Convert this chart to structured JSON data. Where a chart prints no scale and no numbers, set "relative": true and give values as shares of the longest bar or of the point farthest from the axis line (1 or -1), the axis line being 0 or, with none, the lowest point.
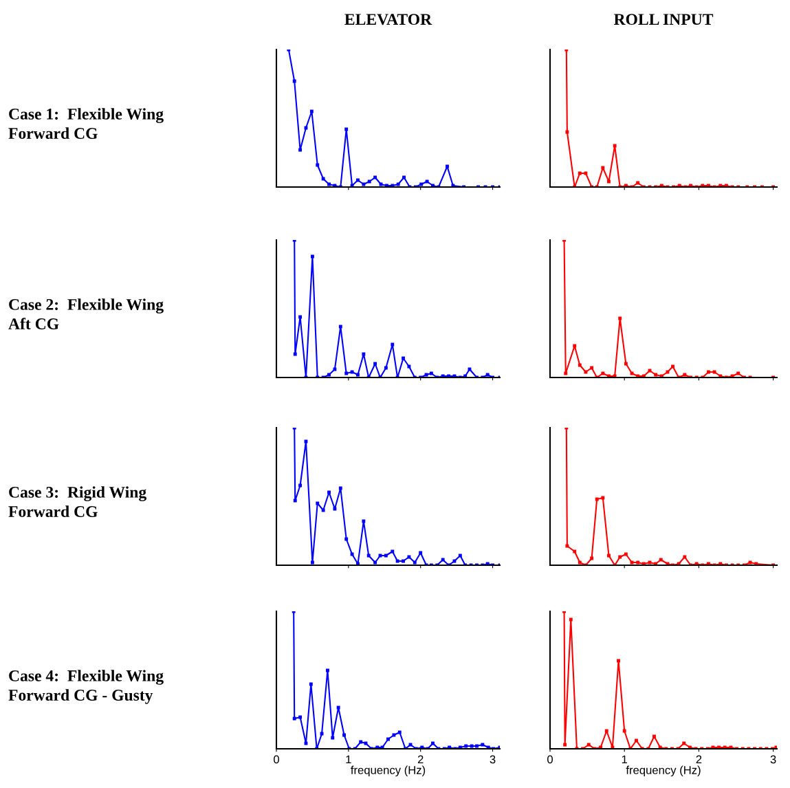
{
  "chart_data": [
    {
      "type": "line",
      "title": "ELEVATOR",
      "ylabel": "Case 1:  Flexible Wing\nForward CG",
      "relative": true,
      "marker": "square",
      "tick_labels": false,
      "xlim": [
        0,
        3.1
      ],
      "xticks": [
        1,
        2,
        3
      ],
      "series": [
        {
          "color": "#0000ff",
          "x": [
            0.17,
            0.25,
            0.33,
            0.41,
            0.49,
            0.57,
            0.65,
            0.73,
            0.81,
            0.89,
            0.97,
            1.05,
            1.13,
            1.21,
            1.29,
            1.37,
            1.45,
            1.53,
            1.61,
            1.69,
            1.77,
            1.85,
            1.93,
            2.01,
            2.09,
            2.17,
            2.25,
            2.37,
            2.45,
            2.6,
            2.8,
            2.9,
            3.0,
            3.1
          ],
          "values": [
            1.0,
            0.77,
            0.27,
            0.43,
            0.55,
            0.16,
            0.06,
            0.02,
            0.01,
            0,
            0.42,
            0.01,
            0.05,
            0.02,
            0.04,
            0.07,
            0.02,
            0.01,
            0.01,
            0.02,
            0.07,
            0,
            0,
            0.02,
            0.04,
            0.01,
            0,
            0.15,
            0.01,
            0,
            0,
            0,
            0,
            0
          ]
        }
      ]
    },
    {
      "type": "line",
      "title": "ROLL INPUT",
      "relative": true,
      "marker": "square",
      "tick_labels": false,
      "xlim": [
        0,
        3.05
      ],
      "xticks": [
        1,
        2,
        3
      ],
      "series": [
        {
          "color": "#ff0000",
          "x": [
            0.22,
            0.23,
            0.33,
            0.4,
            0.48,
            0.56,
            0.63,
            0.71,
            0.79,
            0.87,
            0.94,
            1.02,
            1.1,
            1.18,
            1.26,
            1.34,
            1.42,
            1.5,
            1.58,
            1.66,
            1.74,
            1.82,
            1.89,
            1.97,
            2.05,
            2.13,
            2.21,
            2.29,
            2.37,
            2.45,
            2.53,
            2.65,
            2.75,
            2.85,
            3.0
          ],
          "values": [
            1.0,
            0.4,
            0,
            0.1,
            0.1,
            0,
            0,
            0.14,
            0.04,
            0.3,
            0,
            0.01,
            0,
            0.03,
            0,
            0,
            0,
            0.01,
            0,
            0,
            0.01,
            0,
            0.01,
            0,
            0.01,
            0.01,
            0,
            0.01,
            0.01,
            0,
            0,
            0,
            0,
            0,
            0
          ]
        }
      ]
    },
    {
      "type": "line",
      "ylabel": "Case 2:  Flexible Wing\nAft CG",
      "relative": true,
      "marker": "square",
      "tick_labels": false,
      "xlim": [
        0,
        3.1
      ],
      "xticks": [
        1,
        2,
        3
      ],
      "series": [
        {
          "color": "#0000ff",
          "x": [
            0.25,
            0.26,
            0.33,
            0.41,
            0.5,
            0.57,
            0.65,
            0.73,
            0.81,
            0.89,
            0.97,
            1.05,
            1.13,
            1.21,
            1.28,
            1.37,
            1.44,
            1.52,
            1.61,
            1.68,
            1.76,
            1.84,
            1.92,
            2.0,
            2.08,
            2.15,
            2.23,
            2.31,
            2.39,
            2.47,
            2.55,
            2.62,
            2.68,
            2.78,
            2.86,
            2.93,
            3.0,
            3.1
          ],
          "values": [
            1.0,
            0.17,
            0.44,
            0,
            0.88,
            0,
            0,
            0.02,
            0.06,
            0.37,
            0.03,
            0.04,
            0.02,
            0.17,
            0,
            0.1,
            0,
            0.07,
            0.24,
            0,
            0.14,
            0.08,
            0,
            0,
            0.02,
            0.03,
            0,
            0.01,
            0.01,
            0.01,
            0,
            0.01,
            0.06,
            0,
            0,
            0.02,
            0,
            0
          ]
        }
      ]
    },
    {
      "type": "line",
      "relative": true,
      "marker": "square",
      "tick_labels": false,
      "xlim": [
        0,
        3.05
      ],
      "xticks": [
        1,
        2,
        3
      ],
      "series": [
        {
          "color": "#ff0000",
          "x": [
            0.19,
            0.21,
            0.33,
            0.4,
            0.48,
            0.56,
            0.63,
            0.71,
            0.79,
            0.87,
            0.94,
            1.02,
            1.1,
            1.18,
            1.26,
            1.34,
            1.42,
            1.5,
            1.58,
            1.65,
            1.73,
            1.81,
            1.89,
            1.97,
            2.05,
            2.13,
            2.21,
            2.29,
            2.37,
            2.45,
            2.53,
            2.61,
            2.69,
            3.0
          ],
          "values": [
            1.0,
            0.03,
            0.23,
            0.09,
            0.04,
            0.07,
            0,
            0.03,
            0.01,
            0.01,
            0.43,
            0.1,
            0.03,
            0.01,
            0.01,
            0.05,
            0.02,
            0.01,
            0.04,
            0.08,
            0,
            0.02,
            0,
            0,
            0,
            0.04,
            0.04,
            0.01,
            0,
            0.01,
            0.03,
            0,
            0,
            0
          ]
        }
      ]
    },
    {
      "type": "line",
      "ylabel": "Case 3:  Rigid Wing\nForward CG",
      "relative": true,
      "marker": "square",
      "tick_labels": false,
      "xlim": [
        0,
        3.1
      ],
      "xticks": [
        1,
        2,
        3
      ],
      "series": [
        {
          "color": "#0000ff",
          "x": [
            0.25,
            0.26,
            0.33,
            0.41,
            0.5,
            0.57,
            0.65,
            0.73,
            0.81,
            0.89,
            0.97,
            1.05,
            1.13,
            1.21,
            1.28,
            1.37,
            1.44,
            1.52,
            1.61,
            1.68,
            1.76,
            1.84,
            1.92,
            2.0,
            2.08,
            2.15,
            2.23,
            2.31,
            2.39,
            2.47,
            2.55,
            2.62,
            2.7,
            2.78,
            2.86,
            2.93,
            3.0,
            3.1
          ],
          "values": [
            1.0,
            0.47,
            0.58,
            0.9,
            0.02,
            0.45,
            0.4,
            0.53,
            0.41,
            0.56,
            0.19,
            0.08,
            0.01,
            0.32,
            0.07,
            0.02,
            0.07,
            0.07,
            0.1,
            0.03,
            0.03,
            0.06,
            0.02,
            0.09,
            0,
            0,
            0,
            0.04,
            0,
            0.03,
            0.07,
            0,
            0,
            0,
            0,
            0.01,
            0,
            0
          ]
        }
      ]
    },
    {
      "type": "line",
      "relative": true,
      "marker": "square",
      "tick_labels": false,
      "xlim": [
        0,
        3.05
      ],
      "xticks": [
        1,
        2,
        3
      ],
      "series": [
        {
          "color": "#ff0000",
          "x": [
            0.22,
            0.23,
            0.33,
            0.4,
            0.48,
            0.56,
            0.63,
            0.71,
            0.79,
            0.87,
            0.94,
            1.02,
            1.1,
            1.18,
            1.26,
            1.34,
            1.42,
            1.49,
            1.58,
            1.65,
            1.73,
            1.81,
            1.89,
            1.97,
            2.05,
            2.13,
            2.21,
            2.29,
            2.37,
            2.45,
            2.53,
            2.61,
            2.69,
            2.77,
            3.0
          ],
          "values": [
            1.0,
            0.14,
            0.1,
            0.02,
            0,
            0.05,
            0.48,
            0.49,
            0.07,
            0,
            0.06,
            0.08,
            0.02,
            0.02,
            0.01,
            0.02,
            0.01,
            0.04,
            0.01,
            0,
            0.01,
            0.06,
            0,
            0.01,
            0,
            0.01,
            0,
            0.01,
            0,
            0,
            0,
            0,
            0.02,
            0.01,
            0
          ]
        }
      ]
    },
    {
      "type": "line",
      "ylabel": "Case 4:  Flexible Wing\nForward CG - Gusty",
      "xlabel": "frequency (Hz)",
      "relative": true,
      "marker": "square",
      "tick_labels": "x",
      "xlim": [
        0,
        3.1
      ],
      "xticks": [
        0,
        1,
        2,
        3
      ],
      "series": [
        {
          "color": "#0000ff",
          "x": [
            0.24,
            0.25,
            0.33,
            0.41,
            0.48,
            0.56,
            0.63,
            0.71,
            0.78,
            0.86,
            0.94,
            1.01,
            1.09,
            1.17,
            1.24,
            1.32,
            1.4,
            1.47,
            1.55,
            1.63,
            1.71,
            1.79,
            1.86,
            1.94,
            2.02,
            2.1,
            2.17,
            2.25,
            2.33,
            2.4,
            2.48,
            2.55,
            2.63,
            2.71,
            2.78,
            2.86,
            2.94,
            3.01,
            3.1
          ],
          "values": [
            1.0,
            0.22,
            0.23,
            0.04,
            0.47,
            0,
            0.11,
            0.57,
            0.08,
            0.3,
            0.1,
            0,
            0,
            0.05,
            0.04,
            0,
            0.01,
            0.01,
            0.07,
            0.1,
            0.12,
            0,
            0.03,
            0,
            0.01,
            0,
            0.04,
            0,
            0,
            0.01,
            0,
            0.01,
            0.02,
            0.02,
            0.02,
            0.03,
            0.01,
            0,
            0.01
          ]
        }
      ]
    },
    {
      "type": "line",
      "xlabel": "frequency (Hz)",
      "relative": true,
      "marker": "square",
      "tick_labels": "x",
      "xlim": [
        0,
        3.05
      ],
      "xticks": [
        0,
        1,
        2,
        3
      ],
      "series": [
        {
          "color": "#ff0000",
          "x": [
            0.19,
            0.2,
            0.28,
            0.36,
            0.44,
            0.52,
            0.6,
            0.68,
            0.76,
            0.84,
            0.92,
            1.0,
            1.08,
            1.16,
            1.24,
            1.32,
            1.4,
            1.48,
            1.56,
            1.64,
            1.72,
            1.8,
            1.88,
            1.96,
            2.04,
            2.12,
            2.19,
            2.27,
            2.35,
            2.43,
            2.51,
            2.59,
            2.67,
            2.75,
            2.83,
            2.91,
            2.99,
            3.04
          ],
          "values": [
            1.0,
            0.03,
            0.94,
            0,
            0,
            0.03,
            0,
            0.01,
            0.13,
            0.01,
            0.64,
            0.13,
            0,
            0.06,
            0,
            0,
            0.09,
            0.01,
            0,
            0,
            0,
            0.04,
            0.01,
            0,
            0,
            0,
            0.01,
            0.01,
            0.01,
            0.01,
            0,
            0,
            0,
            0,
            0,
            0,
            0,
            0.01
          ]
        }
      ]
    }
  ]
}
